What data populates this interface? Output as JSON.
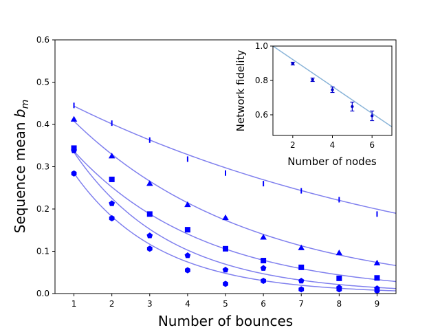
{
  "chart_data": [
    {
      "type": "scatter",
      "xlabel": "Number of bounces",
      "ylabel_main": "Sequence mean ",
      "ylabel_math": "b",
      "ylabel_sub": "m",
      "xlim": [
        0.5,
        9.5
      ],
      "ylim": [
        0,
        0.6
      ],
      "xticks": [
        1,
        2,
        3,
        4,
        5,
        6,
        7,
        8,
        9
      ],
      "yticks": [
        0.0,
        0.1,
        0.2,
        0.3,
        0.4,
        0.5,
        0.6
      ],
      "ytick_labels": [
        "0.0",
        "0.1",
        "0.2",
        "0.3",
        "0.4",
        "0.5",
        "0.6"
      ],
      "grid": false,
      "marker_color": "#0000ff",
      "fit_color": "#8080ee",
      "series": [
        {
          "marker": "vline",
          "x": [
            1,
            2,
            3,
            4,
            5,
            6,
            7,
            8,
            9
          ],
          "y": [
            0.445,
            0.403,
            0.363,
            0.318,
            0.285,
            0.26,
            0.243,
            0.222,
            0.188
          ],
          "fit": {
            "A": 0.49,
            "B": 0.905
          }
        },
        {
          "marker": "triangle",
          "x": [
            1,
            2,
            3,
            4,
            5,
            6,
            7,
            8,
            9
          ],
          "y": [
            0.412,
            0.325,
            0.26,
            0.21,
            0.179,
            0.133,
            0.108,
            0.096,
            0.072
          ],
          "fit": {
            "A": 0.505,
            "B": 0.8075
          }
        },
        {
          "marker": "square",
          "x": [
            1,
            2,
            3,
            4,
            5,
            6,
            7,
            8,
            9
          ],
          "y": [
            0.344,
            0.27,
            0.188,
            0.151,
            0.106,
            0.078,
            0.062,
            0.036,
            0.037
          ],
          "fit": {
            "A": 0.45,
            "B": 0.748
          }
        },
        {
          "marker": "pentagon",
          "x": [
            1,
            2,
            3,
            4,
            5,
            6,
            7,
            8,
            9
          ],
          "y": [
            0.338,
            0.213,
            0.137,
            0.09,
            0.056,
            0.06,
            0.03,
            0.014,
            0.012
          ],
          "fit": {
            "A": 0.495,
            "B": 0.675
          }
        },
        {
          "marker": "hexagon",
          "x": [
            1,
            2,
            3,
            4,
            5,
            6,
            7,
            8,
            9
          ],
          "y": [
            0.284,
            0.178,
            0.106,
            0.055,
            0.023,
            0.03,
            0.01,
            0.01,
            0.007
          ],
          "fit": {
            "A": 0.445,
            "B": 0.64
          }
        }
      ]
    },
    {
      "type": "scatter",
      "xlabel": "Number of nodes",
      "ylabel": "Network fidelity",
      "xlim": [
        1,
        7
      ],
      "ylim": [
        0.48,
        1.0
      ],
      "xticks": [
        2,
        4,
        6
      ],
      "yticks": [
        0.6,
        0.8,
        1.0
      ],
      "ytick_labels": [
        "0.6",
        "0.8",
        "1.0"
      ],
      "grid": false,
      "marker_color": "#0000cc",
      "fit_color": "#8ab4d8",
      "x": [
        2,
        3,
        4,
        5,
        6
      ],
      "y": [
        0.898,
        0.804,
        0.746,
        0.648,
        0.594
      ],
      "yerr": [
        0.008,
        0.01,
        0.016,
        0.026,
        0.028
      ],
      "fit_line": {
        "x": [
          1,
          7
        ],
        "y": [
          1.0,
          0.53
        ]
      }
    }
  ]
}
